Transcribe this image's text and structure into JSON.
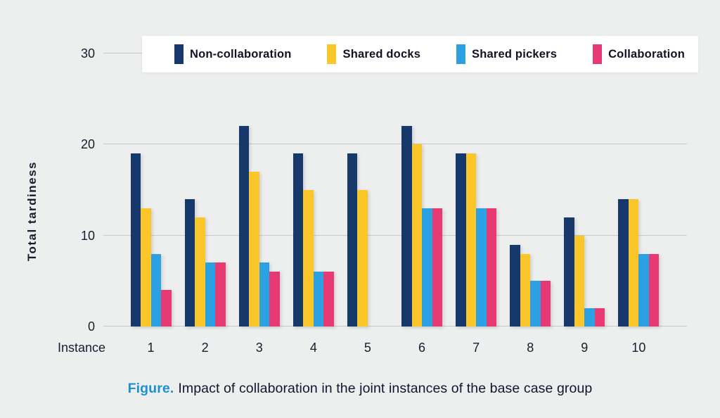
{
  "figure": {
    "caption_label": "Figure.",
    "caption_text": "Impact of collaboration in the joint instances of the base case group"
  },
  "chart_data": {
    "type": "bar",
    "title": "",
    "xlabel": "Instance",
    "ylabel": "Total tardiness",
    "ylim": [
      0,
      30
    ],
    "yticks": [
      0,
      10,
      20,
      30
    ],
    "grid": true,
    "legend_position": "top",
    "categories": [
      "1",
      "2",
      "3",
      "4",
      "5",
      "6",
      "7",
      "8",
      "9",
      "10"
    ],
    "series": [
      {
        "name": "Non-collaboration",
        "color": "#17386b",
        "values": [
          19,
          14,
          22,
          19,
          19,
          22,
          19,
          9,
          12,
          14
        ]
      },
      {
        "name": "Shared docks",
        "color": "#fbc62a",
        "values": [
          13,
          12,
          17,
          15,
          15,
          20,
          19,
          8,
          10,
          14
        ]
      },
      {
        "name": "Shared pickers",
        "color": "#2ba1e3",
        "values": [
          8,
          7,
          7,
          6,
          0,
          13,
          13,
          5,
          2,
          8
        ]
      },
      {
        "name": "Collaboration",
        "color": "#e83a72",
        "values": [
          4,
          7,
          6,
          6,
          0,
          13,
          13,
          5,
          2,
          8
        ]
      }
    ]
  },
  "colors": {
    "background": "#edefee",
    "legend_background": "#ffffff",
    "gridline": "#c6c8c7",
    "text": "#1b1b2e",
    "caption_accent": "#1e8fd1"
  }
}
